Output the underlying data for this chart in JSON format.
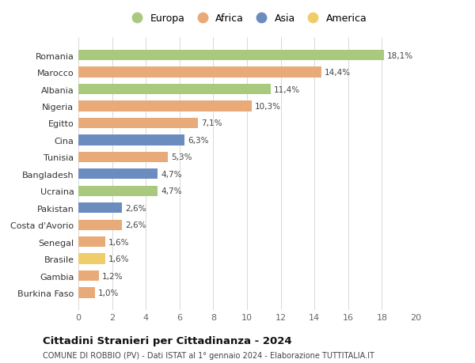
{
  "countries": [
    "Burkina Faso",
    "Gambia",
    "Brasile",
    "Senegal",
    "Costa d'Avorio",
    "Pakistan",
    "Ucraina",
    "Bangladesh",
    "Tunisia",
    "Cina",
    "Egitto",
    "Nigeria",
    "Albania",
    "Marocco",
    "Romania"
  ],
  "values": [
    1.0,
    1.2,
    1.6,
    1.6,
    2.6,
    2.6,
    4.7,
    4.7,
    5.3,
    6.3,
    7.1,
    10.3,
    11.4,
    14.4,
    18.1
  ],
  "labels": [
    "1,0%",
    "1,2%",
    "1,6%",
    "1,6%",
    "2,6%",
    "2,6%",
    "4,7%",
    "4,7%",
    "5,3%",
    "6,3%",
    "7,1%",
    "10,3%",
    "11,4%",
    "14,4%",
    "18,1%"
  ],
  "continents": [
    "Africa",
    "Africa",
    "America",
    "Africa",
    "Africa",
    "Asia",
    "Europa",
    "Asia",
    "Africa",
    "Asia",
    "Africa",
    "Africa",
    "Europa",
    "Africa",
    "Europa"
  ],
  "colors": {
    "Europa": "#a8c97e",
    "Africa": "#e8aa78",
    "Asia": "#6b8cbe",
    "America": "#f0cc6a"
  },
  "legend_order": [
    "Europa",
    "Africa",
    "Asia",
    "America"
  ],
  "title": "Cittadini Stranieri per Cittadinanza - 2024",
  "subtitle": "COMUNE DI ROBBIO (PV) - Dati ISTAT al 1° gennaio 2024 - Elaborazione TUTTITALIA.IT",
  "xlim": [
    0,
    20
  ],
  "xticks": [
    0,
    2,
    4,
    6,
    8,
    10,
    12,
    14,
    16,
    18,
    20
  ],
  "background_color": "#ffffff",
  "grid_color": "#d8d8d8"
}
